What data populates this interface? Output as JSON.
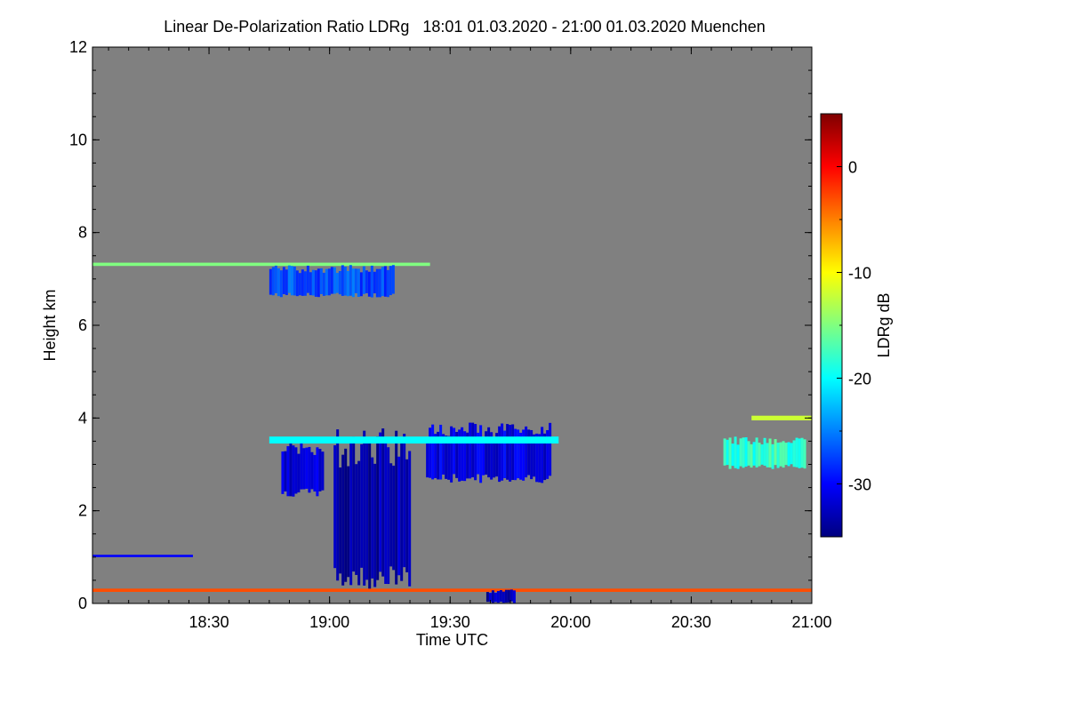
{
  "chart_data": {
    "type": "heatmap",
    "title": "Linear De-Polarization Ratio LDRg   18:01 01.03.2020 - 21:00 01.03.2020 Muenchen",
    "xlabel": "Time UTC",
    "ylabel": "Height km",
    "x_range": [
      "18:01",
      "21:00"
    ],
    "x_ticks": [
      "18:30",
      "19:00",
      "19:30",
      "20:00",
      "20:30",
      "21:00"
    ],
    "ylim": [
      0,
      12
    ],
    "y_ticks": [
      0,
      2,
      4,
      6,
      8,
      10,
      12
    ],
    "background_color": "#808080",
    "colorbar": {
      "label": "LDRg dB",
      "range": [
        -35,
        5
      ],
      "ticks": [
        0,
        -10,
        -20,
        -30
      ],
      "colormap": [
        "#00007f",
        "#0000ff",
        "#0080ff",
        "#00ffff",
        "#80ff80",
        "#ffff00",
        "#ff8000",
        "#ff0000",
        "#7f0000"
      ]
    },
    "features": [
      {
        "name": "cloud-layer-7km",
        "time_start": "18:01",
        "time_end": "19:25",
        "height_start": 7.28,
        "height_end": 7.35,
        "ldr_db": -15
      },
      {
        "name": "cirrus-fallstreaks",
        "time_start": "18:45",
        "time_end": "19:16",
        "height_start": 6.6,
        "height_end": 7.3,
        "ldr_db": -27
      },
      {
        "name": "mid-cloud-left",
        "time_start": "18:48",
        "time_end": "18:58",
        "height_start": 2.3,
        "height_end": 3.5,
        "ldr_db": -32
      },
      {
        "name": "main-precip-shaft",
        "time_start": "19:01",
        "time_end": "19:20",
        "height_start": 0.3,
        "height_end": 3.8,
        "ldr_db": -33
      },
      {
        "name": "mid-cloud-right",
        "time_start": "19:24",
        "time_end": "19:55",
        "height_start": 2.6,
        "height_end": 3.9,
        "ldr_db": -31
      },
      {
        "name": "mid-cloud-top-edge",
        "time_start": "18:45",
        "time_end": "19:57",
        "height_start": 3.45,
        "height_end": 3.6,
        "ldr_db": -20
      },
      {
        "name": "low-cloud-base-1km",
        "time_start": "18:01",
        "time_end": "18:26",
        "height_start": 1.0,
        "height_end": 1.05,
        "ldr_db": -30
      },
      {
        "name": "surface-layer",
        "time_start": "18:01",
        "time_end": "21:00",
        "height_start": 0.25,
        "height_end": 0.32,
        "ldr_db": -3
      },
      {
        "name": "ground-echo-blob",
        "time_start": "19:39",
        "time_end": "19:46",
        "height_start": 0.0,
        "height_end": 0.3,
        "ldr_db": -33
      },
      {
        "name": "late-cloud-3km",
        "time_start": "20:38",
        "time_end": "20:58",
        "height_start": 2.9,
        "height_end": 3.6,
        "ldr_db": -18
      },
      {
        "name": "late-cloud-4km",
        "time_start": "20:45",
        "time_end": "21:00",
        "height_start": 3.95,
        "height_end": 4.05,
        "ldr_db": -12
      }
    ]
  }
}
